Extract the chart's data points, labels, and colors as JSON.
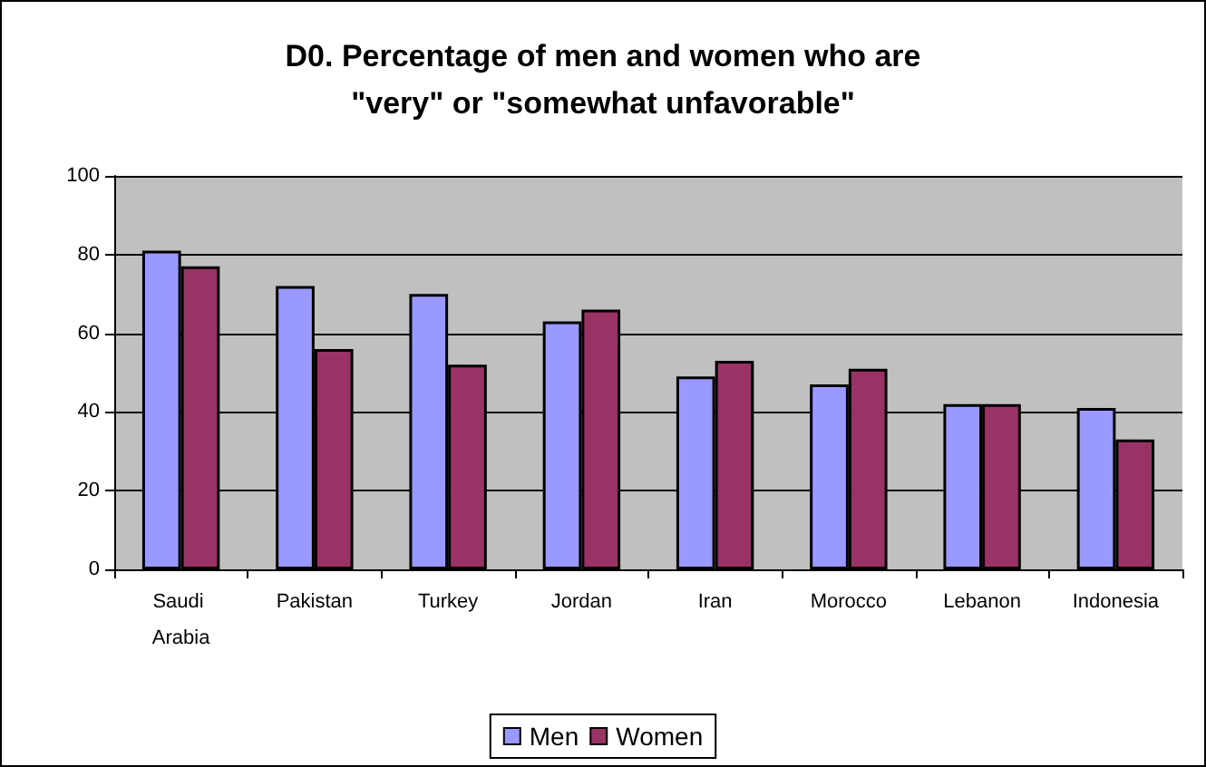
{
  "chart_data": {
    "type": "bar",
    "title": "D0. Percentage of men and women who are\n\"very\" or \"somewhat unfavorable\"",
    "categories": [
      "Saudi Arabia",
      "Pakistan",
      "Turkey",
      "Jordan",
      "Iran",
      "Morocco",
      "Lebanon",
      "Indonesia"
    ],
    "series": [
      {
        "name": "Men",
        "color": "#9999ff",
        "values": [
          81,
          72,
          70,
          63,
          49,
          47,
          42,
          41
        ]
      },
      {
        "name": "Women",
        "color": "#993366",
        "values": [
          77,
          56,
          52,
          66,
          53,
          51,
          42,
          33
        ]
      }
    ],
    "ylim": [
      0,
      100
    ],
    "yticks": [
      0,
      20,
      40,
      60,
      80,
      100
    ],
    "grid": "y",
    "legend": "bottom"
  }
}
